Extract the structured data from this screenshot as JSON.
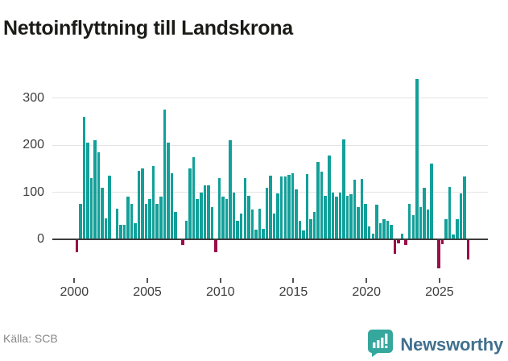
{
  "title": "Nettoinflyttning till Landskrona",
  "footer": {
    "source": "Källa: SCB",
    "brand": "Newsworthy"
  },
  "chart_data": {
    "type": "bar",
    "title": "Nettoinflyttning till Landskrona",
    "x_tick_labels": [
      "2000",
      "2005",
      "2010",
      "2015",
      "2020",
      "2025"
    ],
    "y_ticks": [
      0,
      100,
      200,
      300
    ],
    "ylim": [
      -80,
      360
    ],
    "grid": "horizontal",
    "legend": "none",
    "colors": {
      "positive": "#12a099",
      "negative": "#9a0e49"
    },
    "x_interval": "quarter",
    "values_by_year": {
      "2000": [
        -28,
        75,
        260,
        205
      ],
      "2001": [
        130,
        210,
        185,
        110
      ],
      "2002": [
        45,
        135,
        0,
        65
      ],
      "2003": [
        30,
        30,
        90,
        75
      ],
      "2004": [
        35,
        145,
        150,
        75
      ],
      "2005": [
        85,
        155,
        75,
        90
      ],
      "2006": [
        275,
        205,
        140,
        58
      ],
      "2007": [
        0,
        -12,
        40,
        150
      ],
      "2008": [
        175,
        85,
        100,
        115
      ],
      "2009": [
        115,
        68,
        -28,
        130
      ],
      "2010": [
        90,
        85,
        210,
        100
      ],
      "2011": [
        40,
        55,
        130,
        93
      ],
      "2012": [
        64,
        20,
        65,
        23
      ],
      "2013": [
        110,
        135,
        55,
        97
      ],
      "2014": [
        133,
        134,
        137,
        140
      ],
      "2015": [
        106,
        40,
        19,
        138
      ],
      "2016": [
        43,
        59,
        165,
        144
      ],
      "2017": [
        93,
        178,
        99,
        90
      ],
      "2018": [
        99,
        212,
        92,
        95
      ],
      "2019": [
        126,
        68,
        129,
        76
      ],
      "2020": [
        28,
        12,
        74,
        34
      ],
      "2021": [
        42,
        39,
        30,
        -31
      ],
      "2022": [
        -8,
        12,
        -12,
        76
      ],
      "2023": [
        52,
        340,
        69,
        109
      ],
      "2024": [
        64,
        160,
        0,
        -61
      ],
      "2025": [
        -11,
        43,
        112,
        11
      ],
      "2026": [
        43,
        97,
        134,
        -42
      ]
    }
  }
}
